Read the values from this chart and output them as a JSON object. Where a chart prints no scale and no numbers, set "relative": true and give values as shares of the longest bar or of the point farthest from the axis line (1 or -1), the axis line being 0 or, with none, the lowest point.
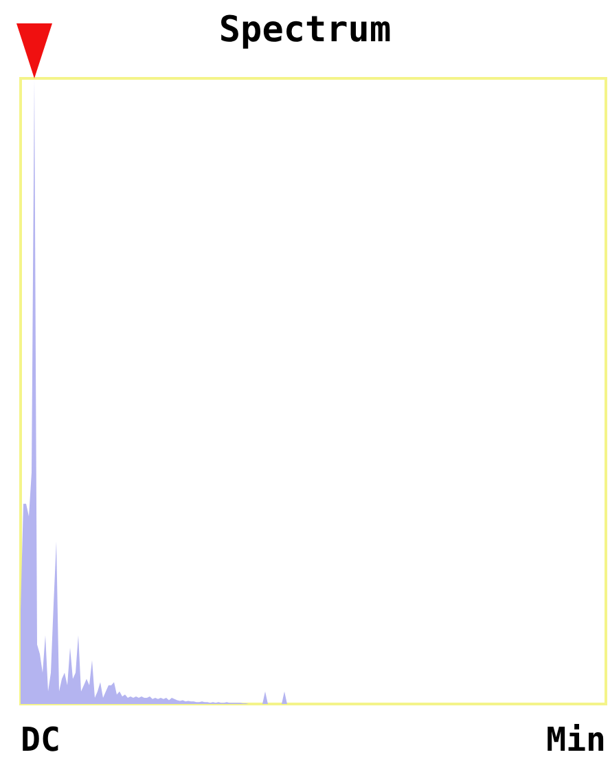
{
  "chart_data": {
    "type": "area",
    "title": "Spectrum",
    "relative": true,
    "color": "#b4b4f0",
    "categories": [
      null,
      null,
      null,
      null,
      null,
      null,
      null,
      null,
      null,
      null,
      null,
      null,
      null,
      null,
      null,
      null,
      null,
      null,
      null,
      null,
      null,
      null,
      null,
      null,
      null,
      null,
      null,
      null,
      null,
      null,
      null,
      null,
      null,
      null,
      null,
      null,
      null,
      null,
      null,
      null,
      null,
      null,
      null,
      null,
      null,
      null,
      null,
      null,
      null,
      null,
      null,
      null,
      null,
      null,
      null,
      null,
      null,
      null,
      null,
      null,
      null,
      null,
      null,
      null,
      null,
      null,
      null,
      null,
      null,
      null,
      null,
      null,
      null,
      null,
      null,
      null,
      null,
      null,
      null,
      null,
      null,
      null,
      null,
      null,
      null,
      null,
      null,
      null,
      null,
      null,
      null,
      null,
      null,
      null,
      null,
      null,
      null,
      null,
      null,
      null,
      null,
      null,
      null,
      null,
      null,
      null,
      null,
      null,
      null,
      null,
      null,
      null,
      null,
      null,
      null,
      null,
      null,
      null,
      null,
      null,
      null,
      null,
      null,
      null,
      null,
      null,
      null,
      null,
      null,
      null,
      null,
      null,
      null,
      null,
      null,
      null,
      null,
      null,
      null,
      null,
      null,
      null,
      null,
      null,
      null,
      null,
      null,
      null,
      null,
      null,
      null,
      null,
      null,
      null,
      null,
      null,
      null,
      null,
      null,
      null,
      null,
      null,
      null,
      null,
      null,
      null,
      null,
      null,
      null,
      null,
      null,
      null,
      null,
      null,
      null,
      null,
      null,
      null,
      null,
      null,
      null,
      null,
      null,
      null,
      null,
      null,
      null,
      null,
      null,
      null,
      null,
      null,
      null,
      null,
      null,
      null,
      null,
      null,
      null,
      null,
      null,
      null,
      null,
      null,
      null,
      null,
      null,
      null,
      null,
      null,
      null,
      null,
      null,
      null
    ],
    "values": [
      0.15,
      0.32,
      0.32,
      0.3,
      0.37,
      1,
      0.095,
      0.08,
      0.05,
      0.11,
      0.02,
      0.05,
      0.16,
      0.26,
      0.02,
      0.04,
      0.05,
      0.03,
      0.09,
      0.04,
      0.05,
      0.11,
      0.02,
      0.03,
      0.04,
      0.03,
      0.07,
      0.01,
      0.02,
      0.035,
      0.01,
      0.02,
      0.03,
      0.03,
      0.035,
      0.015,
      0.02,
      0.012,
      0.015,
      0.01,
      0.012,
      0.01,
      0.012,
      0.01,
      0.012,
      0.01,
      0.01,
      0.012,
      0.008,
      0.01,
      0.008,
      0.01,
      0.008,
      0.01,
      0.006,
      0.01,
      0.008,
      0.006,
      0.005,
      0.006,
      0.004,
      0.005,
      0.004,
      0.004,
      0.003,
      0.003,
      0.004,
      0.003,
      0.003,
      0.002,
      0.003,
      0.002,
      0.003,
      0.002,
      0.002,
      0.003,
      0.002,
      0.002,
      0.002,
      0.002,
      0.002,
      0.001,
      0.001,
      0,
      0,
      0,
      0,
      0,
      0,
      0.02,
      0,
      0,
      0,
      0,
      0,
      0,
      0.02,
      0,
      0,
      0,
      0,
      0,
      0,
      0,
      0,
      0,
      0,
      0,
      0,
      0,
      0,
      0,
      0,
      0,
      0,
      0,
      0,
      0,
      0,
      0,
      0,
      0,
      0,
      0,
      0,
      0,
      0,
      0,
      0,
      0,
      0,
      0,
      0,
      0,
      0,
      0,
      0,
      0,
      0,
      0,
      0,
      0,
      0,
      0,
      0,
      0,
      0,
      0,
      0,
      0,
      0,
      0,
      0,
      0,
      0,
      0,
      0,
      0,
      0,
      0,
      0,
      0,
      0,
      0,
      0,
      0,
      0,
      0,
      0,
      0,
      0,
      0,
      0,
      0,
      0,
      0,
      0,
      0,
      0,
      0,
      0,
      0,
      0,
      0,
      0,
      0,
      0,
      0,
      0,
      0,
      0,
      0,
      0,
      0,
      0,
      0,
      0,
      0,
      0,
      0,
      0,
      0,
      0,
      0,
      0,
      0,
      0,
      0,
      0,
      0,
      0,
      0,
      0,
      0
    ],
    "annotations": [
      "DC",
      "Min"
    ]
  }
}
